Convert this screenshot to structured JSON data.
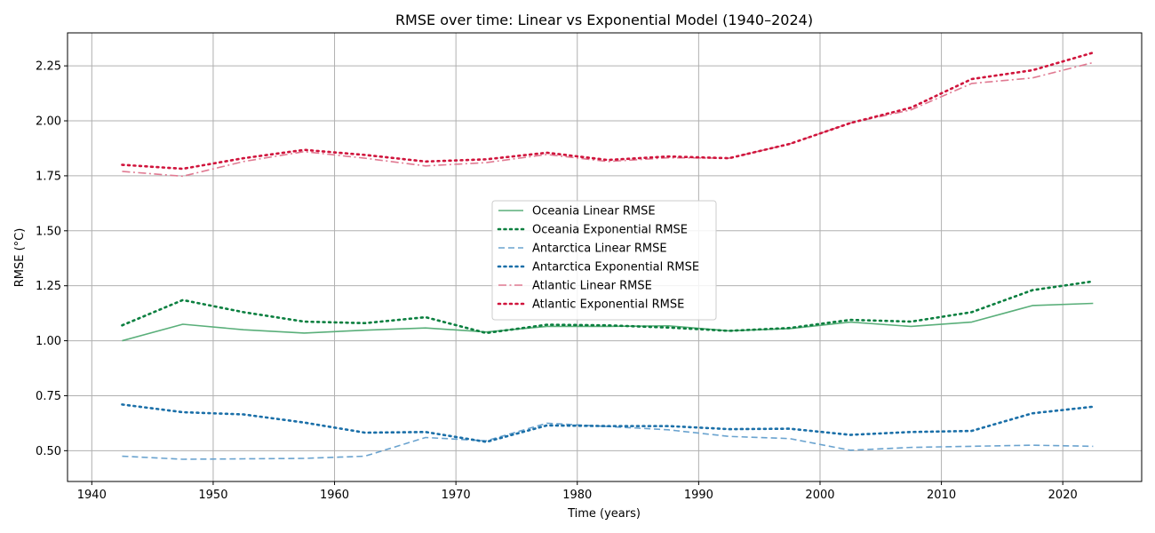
{
  "chart_data": {
    "type": "line",
    "title": "RMSE over time: Linear vs Exponential Model (1940–2024)",
    "xlabel": "Time (years)",
    "ylabel": "RMSE (°C)",
    "xlim": [
      1938,
      2026.5
    ],
    "ylim": [
      0.36,
      2.4
    ],
    "xticks": [
      1940,
      1950,
      1960,
      1970,
      1980,
      1990,
      2000,
      2010,
      2020
    ],
    "yticks": [
      0.5,
      0.75,
      1.0,
      1.25,
      1.5,
      1.75,
      2.0,
      2.25
    ],
    "ytick_labels": [
      "0.50",
      "0.75",
      "1.00",
      "1.25",
      "1.50",
      "1.75",
      "2.00",
      "2.25"
    ],
    "grid": true,
    "legend_position": "center",
    "x": [
      1942.5,
      1947.5,
      1952.5,
      1957.5,
      1962.5,
      1967.5,
      1972.5,
      1977.5,
      1982.5,
      1987.5,
      1992.5,
      1997.5,
      2002.5,
      2007.5,
      2012.5,
      2017.5,
      2022.5
    ],
    "series": [
      {
        "name": "Oceania Linear RMSE",
        "color": "#5aaf7a",
        "style": "solid",
        "values": [
          1.0,
          1.075,
          1.05,
          1.035,
          1.048,
          1.058,
          1.04,
          1.065,
          1.065,
          1.068,
          1.045,
          1.055,
          1.085,
          1.065,
          1.085,
          1.16,
          1.17
        ]
      },
      {
        "name": "Oceania Exponential RMSE",
        "color": "#0a7f3f",
        "style": "dotted",
        "values": [
          1.07,
          1.185,
          1.13,
          1.087,
          1.08,
          1.107,
          1.035,
          1.073,
          1.07,
          1.06,
          1.045,
          1.058,
          1.095,
          1.087,
          1.13,
          1.23,
          1.27
        ]
      },
      {
        "name": "Antarctica Linear RMSE",
        "color": "#6aa3cf",
        "style": "dashed",
        "values": [
          0.475,
          0.461,
          0.463,
          0.465,
          0.475,
          0.56,
          0.545,
          0.625,
          0.61,
          0.595,
          0.565,
          0.555,
          0.502,
          0.515,
          0.52,
          0.525,
          0.52
        ]
      },
      {
        "name": "Antarctica Exponential RMSE",
        "color": "#1a6fa8",
        "style": "dotted",
        "values": [
          0.71,
          0.675,
          0.665,
          0.628,
          0.582,
          0.585,
          0.54,
          0.615,
          0.612,
          0.612,
          0.598,
          0.6,
          0.572,
          0.585,
          0.59,
          0.67,
          0.7
        ]
      },
      {
        "name": "Atlantic Linear RMSE",
        "color": "#e07a92",
        "style": "dashdot",
        "values": [
          1.77,
          1.748,
          1.815,
          1.86,
          1.83,
          1.795,
          1.81,
          1.847,
          1.815,
          1.832,
          1.83,
          1.895,
          1.99,
          2.05,
          2.17,
          2.195,
          2.265
        ]
      },
      {
        "name": "Atlantic Exponential RMSE",
        "color": "#d0143c",
        "style": "dotted",
        "values": [
          1.8,
          1.782,
          1.83,
          1.868,
          1.845,
          1.815,
          1.825,
          1.855,
          1.822,
          1.838,
          1.83,
          1.895,
          1.99,
          2.06,
          2.19,
          2.23,
          2.31
        ]
      }
    ]
  }
}
